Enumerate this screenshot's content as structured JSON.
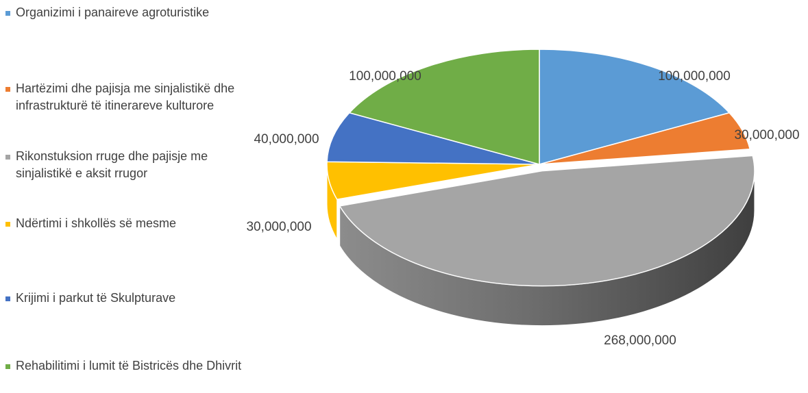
{
  "chart_data": {
    "type": "pie",
    "style": "3d",
    "legend_position": "left",
    "title": "",
    "slices": [
      {
        "label": "Organizimi i panaireve agroturistike",
        "value": 100000000,
        "value_label": "100,000,000",
        "color": "#5B9BD5"
      },
      {
        "label": "Hartëzimi dhe pajisja me sinjalistikë dhe infrastrukturë të itinerareve kulturore",
        "value": 30000000,
        "value_label": "30,000,000",
        "color": "#ED7D31"
      },
      {
        "label": "Rikonstuksion rruge dhe pajisje me sinjalistikë e aksit rrugor",
        "value": 268000000,
        "value_label": "268,000,000",
        "color": "#A5A5A5"
      },
      {
        "label": "Ndërtimi i shkollës së mesme",
        "value": 30000000,
        "value_label": "30,000,000",
        "color": "#FFC000"
      },
      {
        "label": "Krijimi i parkut të Skulpturave",
        "value": 40000000,
        "value_label": "40,000,000",
        "color": "#4472C4"
      },
      {
        "label": "Rehabilitimi i lumit të Bistricës dhe Dhivrit",
        "value": 100000000,
        "value_label": "100,000,000",
        "color": "#70AD47"
      }
    ]
  }
}
